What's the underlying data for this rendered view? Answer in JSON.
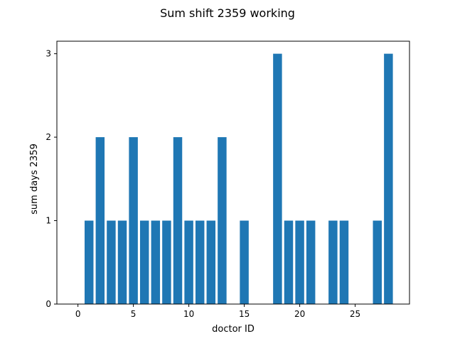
{
  "chart_data": {
    "type": "bar",
    "title": "Sum shift 2359 working",
    "xlabel": "doctor ID",
    "ylabel": "sum days 2359",
    "x": [
      0,
      1,
      2,
      3,
      4,
      5,
      6,
      7,
      8,
      9,
      10,
      11,
      12,
      13,
      14,
      15,
      16,
      17,
      18,
      19,
      20,
      21,
      22,
      23,
      24,
      25,
      26,
      27,
      28
    ],
    "values": [
      0,
      1,
      2,
      1,
      1,
      2,
      1,
      1,
      1,
      2,
      1,
      1,
      1,
      2,
      0,
      1,
      0,
      0,
      3,
      1,
      1,
      1,
      0,
      1,
      1,
      0,
      0,
      1,
      3
    ],
    "xlim": [
      -1.9,
      29.9
    ],
    "ylim": [
      0,
      3.15
    ],
    "xticks": [
      0,
      5,
      10,
      15,
      20,
      25
    ],
    "yticks": [
      0,
      1,
      2,
      3
    ],
    "bar_color": "#1f77b4",
    "grid": false,
    "legend": "none"
  }
}
